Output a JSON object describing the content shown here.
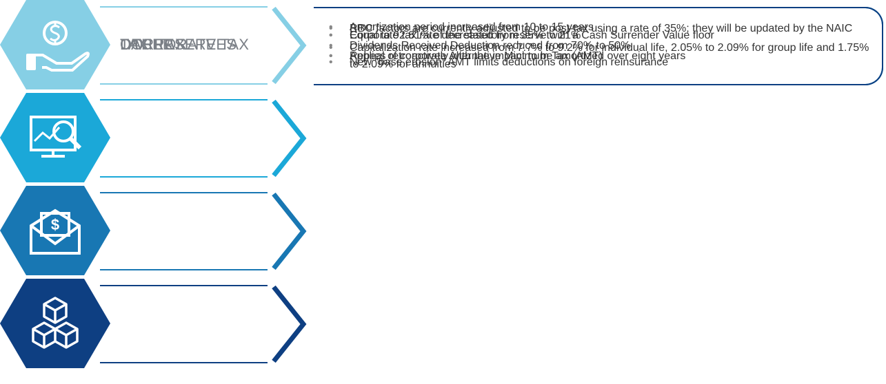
{
  "rows": [
    {
      "title": "CORPORATE TAX",
      "color": "#86cfe5",
      "bullets": [
        "Corporate tax rate decreased from 35% to 21%",
        "Repeal of corporate Alternative Minimum Tax (AMT)"
      ]
    },
    {
      "title": "TAX RESERVES",
      "color": "#1ba8d8",
      "bullets": [
        "Equal to 92.81% of the statutory reserve with a Cash Surrender Value floor",
        "Applies retroactively with the impact to be amortized over eight years"
      ]
    },
    {
      "title": "DAC TAX",
      "color": "#1877b3",
      "bullets": [
        "Amortization period increased from 10 to 15 years",
        "Capitalization rate increased from 7.7% to 9.2% for individual life, 2.05% to 2.09% for group life and 1.75% to 2.09% for annuities"
      ]
    },
    {
      "title": "OTHER",
      "color": "#0e3f82",
      "bullets": [
        "RBC factors are currently adjusted to be post-tax using a rate of 35%; they will be updated by the NAIC",
        "Dividends Received Deduction reduced from 70% to 50%",
        "New “base erosion” AMT limits deductions on foreign reinsurance"
      ]
    }
  ]
}
